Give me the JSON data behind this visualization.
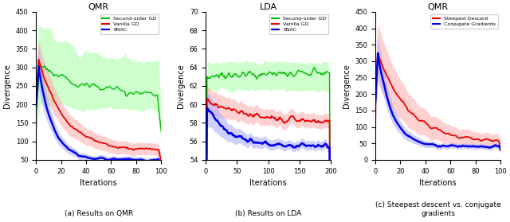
{
  "panel1": {
    "title": "QMR",
    "xlabel": "Iterations",
    "ylabel": "Divergence",
    "xlim": [
      0,
      100
    ],
    "ylim": [
      50,
      450
    ],
    "xticks": [
      0,
      20,
      40,
      60,
      80,
      100
    ],
    "yticks": [
      100,
      150,
      200,
      250,
      300,
      350,
      400,
      450
    ],
    "legend": [
      "Second-order GD",
      "Vanilla GD",
      "ENAC"
    ],
    "colors": [
      "#00cc00",
      "#ff0000",
      "#0000ff"
    ]
  },
  "panel2": {
    "title": "LDA",
    "xlabel": "Iterations",
    "ylabel": "Divergence",
    "xlim": [
      0,
      200
    ],
    "ylim": [
      54,
      70
    ],
    "xticks": [
      0,
      50,
      100,
      150,
      200
    ],
    "yticks": [
      55,
      60,
      65,
      70
    ],
    "legend": [
      "Second-order GD",
      "Vanilla GD",
      "ENAC"
    ],
    "colors": [
      "#00cc00",
      "#ff0000",
      "#0000ff"
    ]
  },
  "panel3": {
    "title": "QMR",
    "xlabel": "Iterations",
    "ylabel": "Divergence",
    "xlim": [
      0,
      100
    ],
    "ylim": [
      0,
      450
    ],
    "xticks": [
      0,
      20,
      40,
      60,
      80,
      100
    ],
    "yticks": [
      50,
      100,
      150,
      200,
      250,
      300,
      350,
      400,
      450
    ],
    "legend": [
      "Steepest Descent",
      "Conjugate Gradients"
    ],
    "colors": [
      "#ff0000",
      "#0000ff"
    ]
  },
  "caption1": "(a) Results on QMR",
  "caption2": "(b) Results on LDA",
  "caption3": "(c) Steepest descent vs. conjugate\ngradients",
  "green_color": "#00bb00",
  "red_color": "#ee0000",
  "blue_color": "#0000ee",
  "green_fill": "#aaffaa",
  "red_fill": "#ffaaaa",
  "blue_fill": "#aaaaff",
  "gray_fill": "#cccccc"
}
